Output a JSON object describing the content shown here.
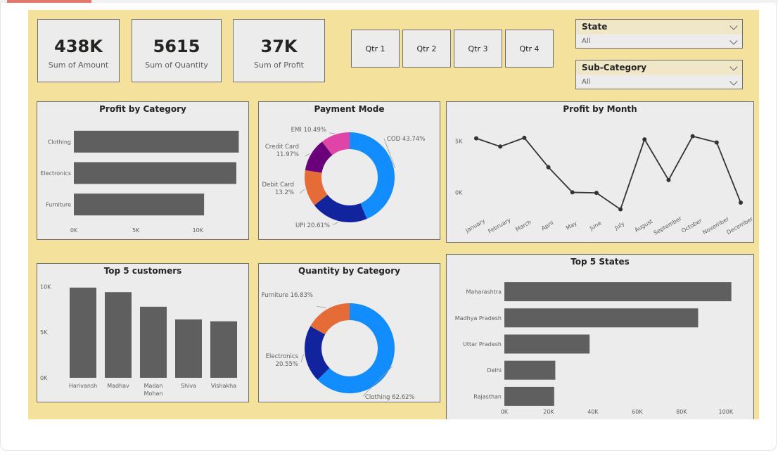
{
  "kpis": {
    "amount": {
      "value": "438K",
      "label": "Sum of Amount"
    },
    "quantity": {
      "value": "5615",
      "label": "Sum of Quantity"
    },
    "profit": {
      "value": "37K",
      "label": "Sum of Profit"
    }
  },
  "quarters": [
    "Qtr 1",
    "Qtr 2",
    "Qtr 3",
    "Qtr 4"
  ],
  "slicers": {
    "state": {
      "label": "State",
      "value": "All"
    },
    "subcategory": {
      "label": "Sub-Category",
      "value": "All"
    }
  },
  "colors": {
    "bar": "#5f5f5f",
    "line": "#333333",
    "panel": "#ececec",
    "canvas": "#f3e19c"
  },
  "chart_data": [
    {
      "id": "profit_by_category",
      "type": "bar",
      "orientation": "horizontal",
      "title": "Profit by Category",
      "categories": [
        "Clothing",
        "Electronics",
        "Furniture"
      ],
      "values": [
        13300,
        13100,
        10500
      ],
      "xlim": [
        0,
        13500
      ],
      "ticks": [
        0,
        5000,
        10000
      ],
      "tick_labels": [
        "0K",
        "5K",
        "10K"
      ]
    },
    {
      "id": "payment_mode",
      "type": "pie",
      "donut": true,
      "title": "Payment Mode",
      "slices": [
        {
          "label": "COD 43.74%",
          "value": 43.74,
          "color": "#118dff"
        },
        {
          "label": "UPI 20.61%",
          "value": 20.61,
          "color": "#12239e"
        },
        {
          "label": "Debit Card\n13.2%",
          "value": 13.2,
          "color": "#e66c37"
        },
        {
          "label": "Credit Card\n11.97%",
          "value": 11.97,
          "color": "#6b007b"
        },
        {
          "label": "EMI 10.49%",
          "value": 10.49,
          "color": "#e044a7"
        }
      ]
    },
    {
      "id": "profit_by_month",
      "type": "line",
      "title": "Profit by Month",
      "categories": [
        "January",
        "February",
        "March",
        "April",
        "May",
        "June",
        "July",
        "August",
        "September",
        "October",
        "November",
        "December"
      ],
      "values": [
        5250,
        4450,
        5300,
        2450,
        0,
        -50,
        -1650,
        5150,
        1200,
        5450,
        4850,
        -1000
      ],
      "ylim": [
        -2500,
        7000
      ],
      "ticks": [
        0,
        5000
      ],
      "tick_labels": [
        "0K",
        "5K"
      ]
    },
    {
      "id": "top5_customers",
      "type": "bar",
      "title": "Top 5 customers",
      "categories": [
        "Harivansh",
        "Madhav",
        "Madan\nMohan",
        "Shiva",
        "Vishakha"
      ],
      "values": [
        9900,
        9400,
        7800,
        6400,
        6200
      ],
      "ylim": [
        0,
        10500
      ],
      "ticks": [
        0,
        5000,
        10000
      ],
      "tick_labels": [
        "0K",
        "5K",
        "10K"
      ]
    },
    {
      "id": "quantity_by_category",
      "type": "pie",
      "donut": true,
      "title": "Quantity by Category",
      "slices": [
        {
          "label": "Clothing 62.62%",
          "value": 62.62,
          "color": "#118dff"
        },
        {
          "label": "Electronics\n20.55%",
          "value": 20.55,
          "color": "#12239e"
        },
        {
          "label": "Furniture 16.83%",
          "value": 16.83,
          "color": "#e66c37"
        }
      ]
    },
    {
      "id": "top5_states",
      "type": "bar",
      "orientation": "horizontal",
      "title": "Top 5 States",
      "categories": [
        "Maharashtra",
        "Madhya Pradesh",
        "Uttar Pradesh",
        "Delhi",
        "Rajasthan"
      ],
      "values": [
        102500,
        87500,
        38500,
        23000,
        22500
      ],
      "xlim": [
        0,
        108000
      ],
      "ticks": [
        0,
        20000,
        40000,
        60000,
        80000,
        100000
      ],
      "tick_labels": [
        "0K",
        "20K",
        "40K",
        "60K",
        "80K",
        "100K"
      ]
    }
  ]
}
